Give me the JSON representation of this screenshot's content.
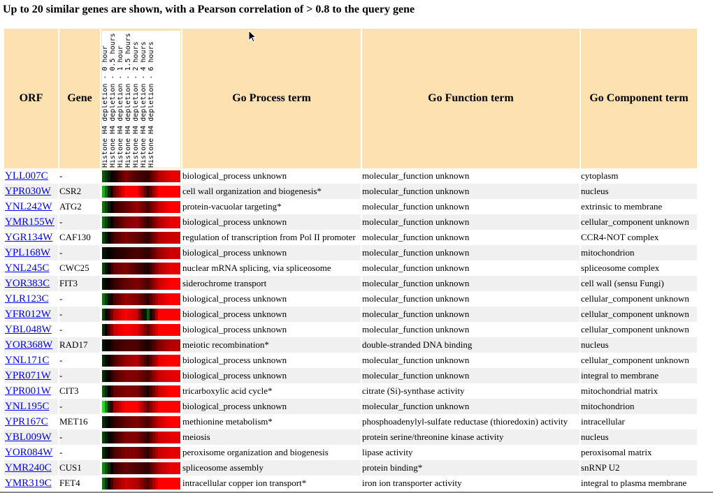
{
  "title": "Up to 20 similar genes are shown, with a Pearson correlation of > 0.8 to the query gene",
  "headers": {
    "orf": "ORF",
    "gene": "Gene",
    "process": "Go Process term",
    "function": "Go Function term",
    "component": "Go Component term"
  },
  "experiments": [
    "Histone H4 depletion - 0 hour",
    "Histone H4 depletion - 0.5 hours",
    "Histone H4 depletion - 1 hour",
    "Histone H4 depletion - 1.5 hours",
    "Histone H4 depletion - 2 hours",
    "Histone H4 depletion - 4 hours",
    "Histone H4 depletion - 6 hours"
  ],
  "heat_colors": {
    "green": "#22dd22",
    "black": "#000000",
    "red": "#ff0000",
    "row_alt_bg": "#f0f0f0",
    "header_bg": "#fde1b1",
    "link": "#0000ee"
  },
  "rows": [
    {
      "orf": "YLL007C",
      "gene": "-",
      "heat": [
        -0.4,
        0.1,
        0.5,
        0.3,
        0.2,
        0.7,
        0.9
      ],
      "process": "biological_process unknown",
      "function": "molecular_function unknown",
      "component": "cytoplasm"
    },
    {
      "orf": "YPR030W",
      "gene": "CSR2",
      "heat": [
        -0.8,
        0.4,
        1,
        1,
        0.2,
        1,
        1
      ],
      "process": "cell wall organization and biogenesis*",
      "function": "molecular_function unknown",
      "component": "nucleus"
    },
    {
      "orf": "YNL242W",
      "gene": "ATG2",
      "heat": [
        -0.5,
        0.2,
        0.4,
        0.6,
        0.3,
        0.8,
        1
      ],
      "process": "protein-vacuolar targeting*",
      "function": "molecular_function unknown",
      "component": "extrinsic to membrane"
    },
    {
      "orf": "YMR155W",
      "gene": "-",
      "heat": [
        -0.5,
        0.2,
        0.5,
        0.6,
        0.2,
        0.7,
        0.9
      ],
      "process": "biological_process unknown",
      "function": "molecular_function unknown",
      "component": "cellular_component unknown"
    },
    {
      "orf": "YGR134W",
      "gene": "CAF130",
      "heat": [
        -0.3,
        0.3,
        0.5,
        0.4,
        0.2,
        0.7,
        0.8
      ],
      "process": "regulation of transcription from Pol II promoter",
      "function": "molecular_function unknown",
      "component": "CCR4-NOT complex"
    },
    {
      "orf": "YPL168W",
      "gene": "-",
      "heat": [
        -0.1,
        0.1,
        0.2,
        0.3,
        0.2,
        0.6,
        0.8
      ],
      "process": "biological_process unknown",
      "function": "molecular_function unknown",
      "component": "mitochondrion"
    },
    {
      "orf": "YNL245C",
      "gene": "CWC25",
      "heat": [
        -0.3,
        0.4,
        0.5,
        0.3,
        0.1,
        0.7,
        0.9
      ],
      "process": "nuclear mRNA splicing, via spliceosome",
      "function": "molecular_function unknown",
      "component": "spliceosome complex"
    },
    {
      "orf": "YOR383C",
      "gene": "FIT3",
      "heat": [
        -0.1,
        0.2,
        0.4,
        0.5,
        0.3,
        0.8,
        1
      ],
      "process": "siderochrome transport",
      "function": "molecular_function unknown",
      "component": "cell wall (sensu Fungi)"
    },
    {
      "orf": "YLR123C",
      "gene": "-",
      "heat": [
        -0.5,
        0.3,
        0.6,
        0.5,
        0.2,
        0.8,
        1
      ],
      "process": "biological_process unknown",
      "function": "molecular_function unknown",
      "component": "cellular_component unknown"
    },
    {
      "orf": "YFR012W",
      "gene": "-",
      "heat": [
        -0.3,
        0.7,
        1,
        0.8,
        -0.4,
        1,
        1
      ],
      "process": "biological_process unknown",
      "function": "molecular_function unknown",
      "component": "cellular_component unknown"
    },
    {
      "orf": "YBL048W",
      "gene": "-",
      "heat": [
        -0.2,
        0.8,
        1,
        0.9,
        0.4,
        1,
        1
      ],
      "process": "biological_process unknown",
      "function": "molecular_function unknown",
      "component": "cellular_component unknown"
    },
    {
      "orf": "YOR368W",
      "gene": "RAD17",
      "heat": [
        -0.1,
        0.2,
        0.3,
        0.3,
        0.1,
        0.5,
        0.7
      ],
      "process": "meiotic recombination*",
      "function": "double-stranded DNA binding",
      "component": "nucleus"
    },
    {
      "orf": "YNL171C",
      "gene": "-",
      "heat": [
        -0.2,
        0.3,
        0.6,
        0.7,
        0.2,
        0.9,
        1
      ],
      "process": "biological_process unknown",
      "function": "molecular_function unknown",
      "component": "cellular_component unknown"
    },
    {
      "orf": "YPR071W",
      "gene": "-",
      "heat": [
        -0.2,
        0.3,
        0.5,
        0.5,
        0.3,
        0.8,
        0.9
      ],
      "process": "biological_process unknown",
      "function": "molecular_function unknown",
      "component": "integral to membrane"
    },
    {
      "orf": "YPR001W",
      "gene": "CIT3",
      "heat": [
        -0.4,
        0.4,
        0.5,
        0.5,
        0.1,
        0.8,
        1
      ],
      "process": "tricarboxylic acid cycle*",
      "function": "citrate (Si)-synthase activity",
      "component": "mitochondrial matrix"
    },
    {
      "orf": "YNL195C",
      "gene": "-",
      "heat": [
        -1,
        0.6,
        1,
        1,
        0.4,
        1,
        1
      ],
      "process": "biological_process unknown",
      "function": "molecular_function unknown",
      "component": "mitochondrion"
    },
    {
      "orf": "YPR167C",
      "gene": "MET16",
      "heat": [
        -0.2,
        0.2,
        0.4,
        0.5,
        0.3,
        0.8,
        1
      ],
      "process": "methionine metabolism*",
      "function": "phosphoadenylyl-sulfate reductase (thioredoxin) activity",
      "component": "intracellular"
    },
    {
      "orf": "YBL009W",
      "gene": "-",
      "heat": [
        -0.3,
        0.2,
        0.5,
        0.5,
        0.2,
        0.8,
        0.9
      ],
      "process": "meiosis",
      "function": "protein serine/threonine kinase activity",
      "component": "nucleus"
    },
    {
      "orf": "YOR084W",
      "gene": "-",
      "heat": [
        -0.2,
        0.3,
        0.5,
        0.5,
        0.2,
        0.8,
        0.9
      ],
      "process": "peroxisome organization and biogenesis",
      "function": "lipase activity",
      "component": "peroxisomal matrix"
    },
    {
      "orf": "YMR240C",
      "gene": "CUS1",
      "heat": [
        -0.6,
        0.2,
        0.4,
        0.3,
        0.2,
        0.7,
        0.9
      ],
      "process": "spliceosome assembly",
      "function": "protein binding*",
      "component": "snRNP U2"
    },
    {
      "orf": "YMR319C",
      "gene": "FET4",
      "heat": [
        -0.5,
        0.5,
        0.8,
        0.7,
        0.3,
        1,
        1
      ],
      "process": "intracellular copper ion transport*",
      "function": "iron ion transporter activity",
      "component": "integral to plasma membrane"
    }
  ]
}
